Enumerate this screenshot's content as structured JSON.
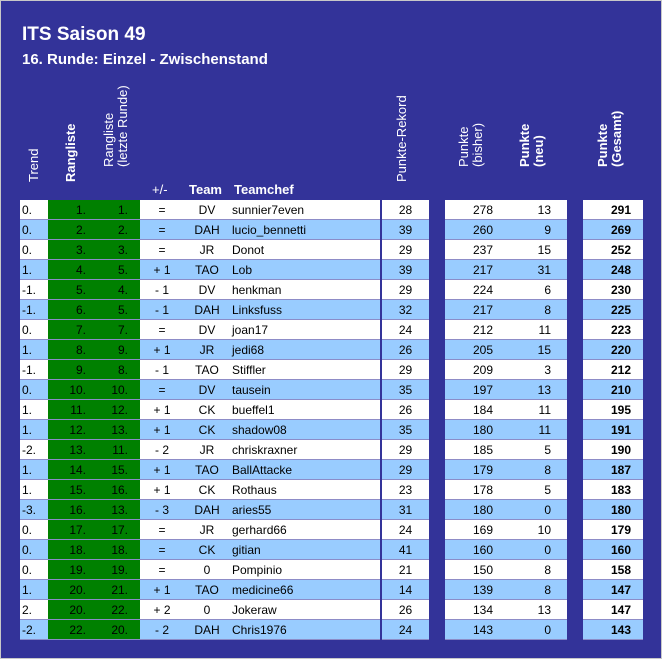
{
  "title": "ITS Saison 49",
  "subtitle": "16. Runde: Einzel - Zwischenstand",
  "headers": {
    "trend": "Trend",
    "rangliste": "Rangliste",
    "rangliste_prev_1": "Rangliste",
    "rangliste_prev_2": "(letzte Runde)",
    "plusminus": "+/-",
    "team": "Team",
    "teamchef": "Teamchef",
    "punkte_rekord": "Punkte-Rekord",
    "punkte_bisher_1": "Punkte",
    "punkte_bisher_2": "(bisher)",
    "punkte_neu_1": "Punkte",
    "punkte_neu_2": "(neu)",
    "punkte_gesamt_1": "Punkte",
    "punkte_gesamt_2": "(Gesamt)"
  },
  "colors": {
    "board": "#333399",
    "row_white": "#ffffff",
    "row_blue": "#99ccff",
    "rank_green": "#008000"
  },
  "rows": [
    {
      "trend": "0.",
      "rank": "1.",
      "prev": "1.",
      "pm": "=",
      "team": "DV",
      "chef": "sunnier7even",
      "rec": "28",
      "bisher": "278",
      "neu": "13",
      "gesamt": "291"
    },
    {
      "trend": "0.",
      "rank": "2.",
      "prev": "2.",
      "pm": "=",
      "team": "DAH",
      "chef": "lucio_bennetti",
      "rec": "39",
      "bisher": "260",
      "neu": "9",
      "gesamt": "269"
    },
    {
      "trend": "0.",
      "rank": "3.",
      "prev": "3.",
      "pm": "=",
      "team": "JR",
      "chef": "Donot",
      "rec": "29",
      "bisher": "237",
      "neu": "15",
      "gesamt": "252"
    },
    {
      "trend": "1.",
      "rank": "4.",
      "prev": "5.",
      "pm": "+ 1",
      "team": "TAO",
      "chef": "Lob",
      "rec": "39",
      "bisher": "217",
      "neu": "31",
      "gesamt": "248"
    },
    {
      "trend": "-1.",
      "rank": "5.",
      "prev": "4.",
      "pm": "- 1",
      "team": "DV",
      "chef": "henkman",
      "rec": "29",
      "bisher": "224",
      "neu": "6",
      "gesamt": "230"
    },
    {
      "trend": "-1.",
      "rank": "6.",
      "prev": "5.",
      "pm": "- 1",
      "team": "DAH",
      "chef": "Linksfuss",
      "rec": "32",
      "bisher": "217",
      "neu": "8",
      "gesamt": "225"
    },
    {
      "trend": "0.",
      "rank": "7.",
      "prev": "7.",
      "pm": "=",
      "team": "DV",
      "chef": "joan17",
      "rec": "24",
      "bisher": "212",
      "neu": "11",
      "gesamt": "223"
    },
    {
      "trend": "1.",
      "rank": "8.",
      "prev": "9.",
      "pm": "+ 1",
      "team": "JR",
      "chef": "jedi68",
      "rec": "26",
      "bisher": "205",
      "neu": "15",
      "gesamt": "220"
    },
    {
      "trend": "-1.",
      "rank": "9.",
      "prev": "8.",
      "pm": "- 1",
      "team": "TAO",
      "chef": "Stiffler",
      "rec": "29",
      "bisher": "209",
      "neu": "3",
      "gesamt": "212"
    },
    {
      "trend": "0.",
      "rank": "10.",
      "prev": "10.",
      "pm": "=",
      "team": "DV",
      "chef": "tausein",
      "rec": "35",
      "bisher": "197",
      "neu": "13",
      "gesamt": "210"
    },
    {
      "trend": "1.",
      "rank": "11.",
      "prev": "12.",
      "pm": "+ 1",
      "team": "CK",
      "chef": "bueffel1",
      "rec": "26",
      "bisher": "184",
      "neu": "11",
      "gesamt": "195"
    },
    {
      "trend": "1.",
      "rank": "12.",
      "prev": "13.",
      "pm": "+ 1",
      "team": "CK",
      "chef": "shadow08",
      "rec": "35",
      "bisher": "180",
      "neu": "11",
      "gesamt": "191"
    },
    {
      "trend": "-2.",
      "rank": "13.",
      "prev": "11.",
      "pm": "- 2",
      "team": "JR",
      "chef": "chriskraxner",
      "rec": "29",
      "bisher": "185",
      "neu": "5",
      "gesamt": "190"
    },
    {
      "trend": "1.",
      "rank": "14.",
      "prev": "15.",
      "pm": "+ 1",
      "team": "TAO",
      "chef": "BallAttacke",
      "rec": "29",
      "bisher": "179",
      "neu": "8",
      "gesamt": "187"
    },
    {
      "trend": "1.",
      "rank": "15.",
      "prev": "16.",
      "pm": "+ 1",
      "team": "CK",
      "chef": "Rothaus",
      "rec": "23",
      "bisher": "178",
      "neu": "5",
      "gesamt": "183"
    },
    {
      "trend": "-3.",
      "rank": "16.",
      "prev": "13.",
      "pm": "- 3",
      "team": "DAH",
      "chef": "aries55",
      "rec": "31",
      "bisher": "180",
      "neu": "0",
      "gesamt": "180"
    },
    {
      "trend": "0.",
      "rank": "17.",
      "prev": "17.",
      "pm": "=",
      "team": "JR",
      "chef": "gerhard66",
      "rec": "24",
      "bisher": "169",
      "neu": "10",
      "gesamt": "179"
    },
    {
      "trend": "0.",
      "rank": "18.",
      "prev": "18.",
      "pm": "=",
      "team": "CK",
      "chef": "gitian",
      "rec": "41",
      "bisher": "160",
      "neu": "0",
      "gesamt": "160"
    },
    {
      "trend": "0.",
      "rank": "19.",
      "prev": "19.",
      "pm": "=",
      "team": "0",
      "chef": "Pompinio",
      "rec": "21",
      "bisher": "150",
      "neu": "8",
      "gesamt": "158"
    },
    {
      "trend": "1.",
      "rank": "20.",
      "prev": "21.",
      "pm": "+ 1",
      "team": "TAO",
      "chef": "medicine66",
      "rec": "14",
      "bisher": "139",
      "neu": "8",
      "gesamt": "147"
    },
    {
      "trend": "2.",
      "rank": "20.",
      "prev": "22.",
      "pm": "+ 2",
      "team": "0",
      "chef": "Jokeraw",
      "rec": "26",
      "bisher": "134",
      "neu": "13",
      "gesamt": "147"
    },
    {
      "trend": "-2.",
      "rank": "22.",
      "prev": "20.",
      "pm": "- 2",
      "team": "DAH",
      "chef": "Chris1976",
      "rec": "24",
      "bisher": "143",
      "neu": "0",
      "gesamt": "143"
    }
  ]
}
